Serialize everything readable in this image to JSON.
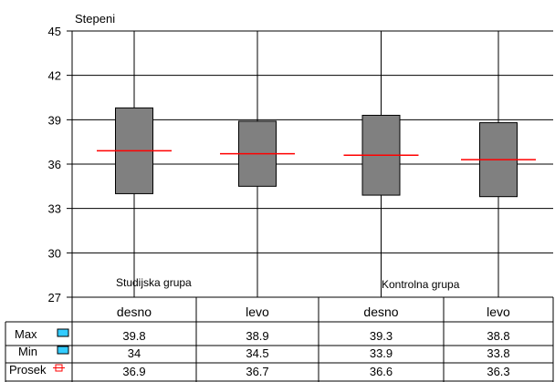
{
  "chart_data": {
    "type": "box",
    "ylabel": "Stepeni",
    "ylim": [
      27,
      45
    ],
    "yticks": [
      27,
      30,
      33,
      36,
      39,
      42,
      45
    ],
    "grid": true,
    "groups": [
      "Studijska grupa",
      "Kontrolna grupa"
    ],
    "categories": [
      "desno",
      "levo",
      "desno",
      "levo"
    ],
    "boxes": [
      {
        "category": "desno",
        "group": "Studijska grupa",
        "max": 39.8,
        "min": 34,
        "mean": 36.9
      },
      {
        "category": "levo",
        "group": "Studijska grupa",
        "max": 38.9,
        "min": 34.5,
        "mean": 36.7
      },
      {
        "category": "desno",
        "group": "Kontrolna grupa",
        "max": 39.3,
        "min": 33.9,
        "mean": 36.6
      },
      {
        "category": "levo",
        "group": "Kontrolna grupa",
        "max": 38.8,
        "min": 33.8,
        "mean": 36.3
      }
    ],
    "table": {
      "rows": [
        {
          "label": "Max",
          "display": [
            "39.8",
            "38.9",
            "39.3",
            "38.8"
          ]
        },
        {
          "label": "Min",
          "display": [
            "34",
            "34.5",
            "33.9",
            "33.8"
          ]
        },
        {
          "label": "Prosek",
          "display": [
            "36.9",
            "36.7",
            "36.6",
            "36.3"
          ]
        }
      ]
    },
    "colors": {
      "box_fill": "#808080",
      "mean_line": "#ff0000",
      "grid": "#000000",
      "legend_marker": "#33ccff"
    }
  }
}
